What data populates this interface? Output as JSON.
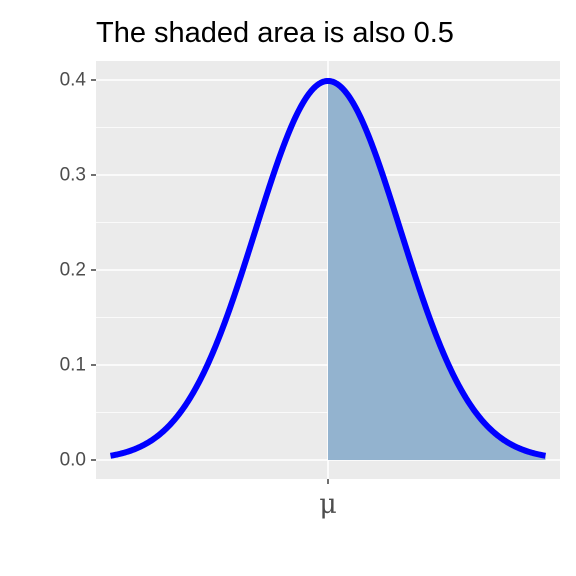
{
  "chart_data": {
    "type": "area",
    "title": "The shaded area is also 0.5",
    "xlabel": "",
    "ylabel": "",
    "xlim": [
      -3.2,
      3.2
    ],
    "ylim": [
      -0.02,
      0.42
    ],
    "grid": true,
    "y_ticks": [
      0.0,
      0.1,
      0.2,
      0.3,
      0.4
    ],
    "y_tick_labels": [
      "0.0",
      "0.1",
      "0.2",
      "0.3",
      "0.4"
    ],
    "x_ticks": [
      0
    ],
    "x_tick_labels": [
      "μ"
    ],
    "curve": {
      "x_range": [
        -3,
        3
      ],
      "peak": 0.399,
      "color": "#0000ff"
    },
    "shaded_region": {
      "from": 0,
      "to": 3,
      "area": 0.5,
      "color": "#93b3cf"
    },
    "panel_color": "#ebebeb",
    "grid_color": "#ffffff"
  }
}
